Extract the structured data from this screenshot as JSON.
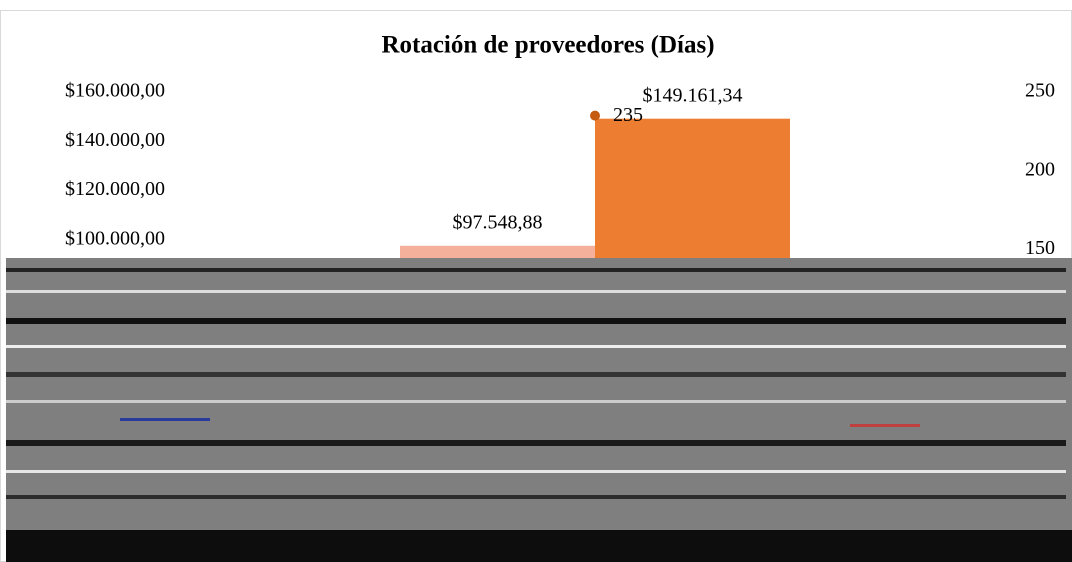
{
  "chart_data": {
    "type": "bar",
    "title": "Rotación de proveedores (Días)",
    "categories": [
      null,
      null
    ],
    "series": [
      {
        "type": "bar",
        "values": [
          97548.88,
          149161.34
        ],
        "value_labels": [
          "$97.548,88",
          "$149.161,34"
        ],
        "colors": [
          "#f4b09a",
          "#ed7d31"
        ]
      },
      {
        "type": "line",
        "axis": "y2",
        "values": [
          null,
          235
        ],
        "color": "#c55a11"
      }
    ],
    "ylim": [
      0,
      160000
    ],
    "yticks": [
      {
        "value": 100000,
        "label": "$100.000,00"
      },
      {
        "value": 120000,
        "label": "$120.000,00"
      },
      {
        "value": 140000,
        "label": "$140.000,00"
      },
      {
        "value": 160000,
        "label": "$160.000,00"
      }
    ],
    "y2lim": [
      0,
      250
    ],
    "y2ticks": [
      150,
      200,
      250
    ]
  }
}
